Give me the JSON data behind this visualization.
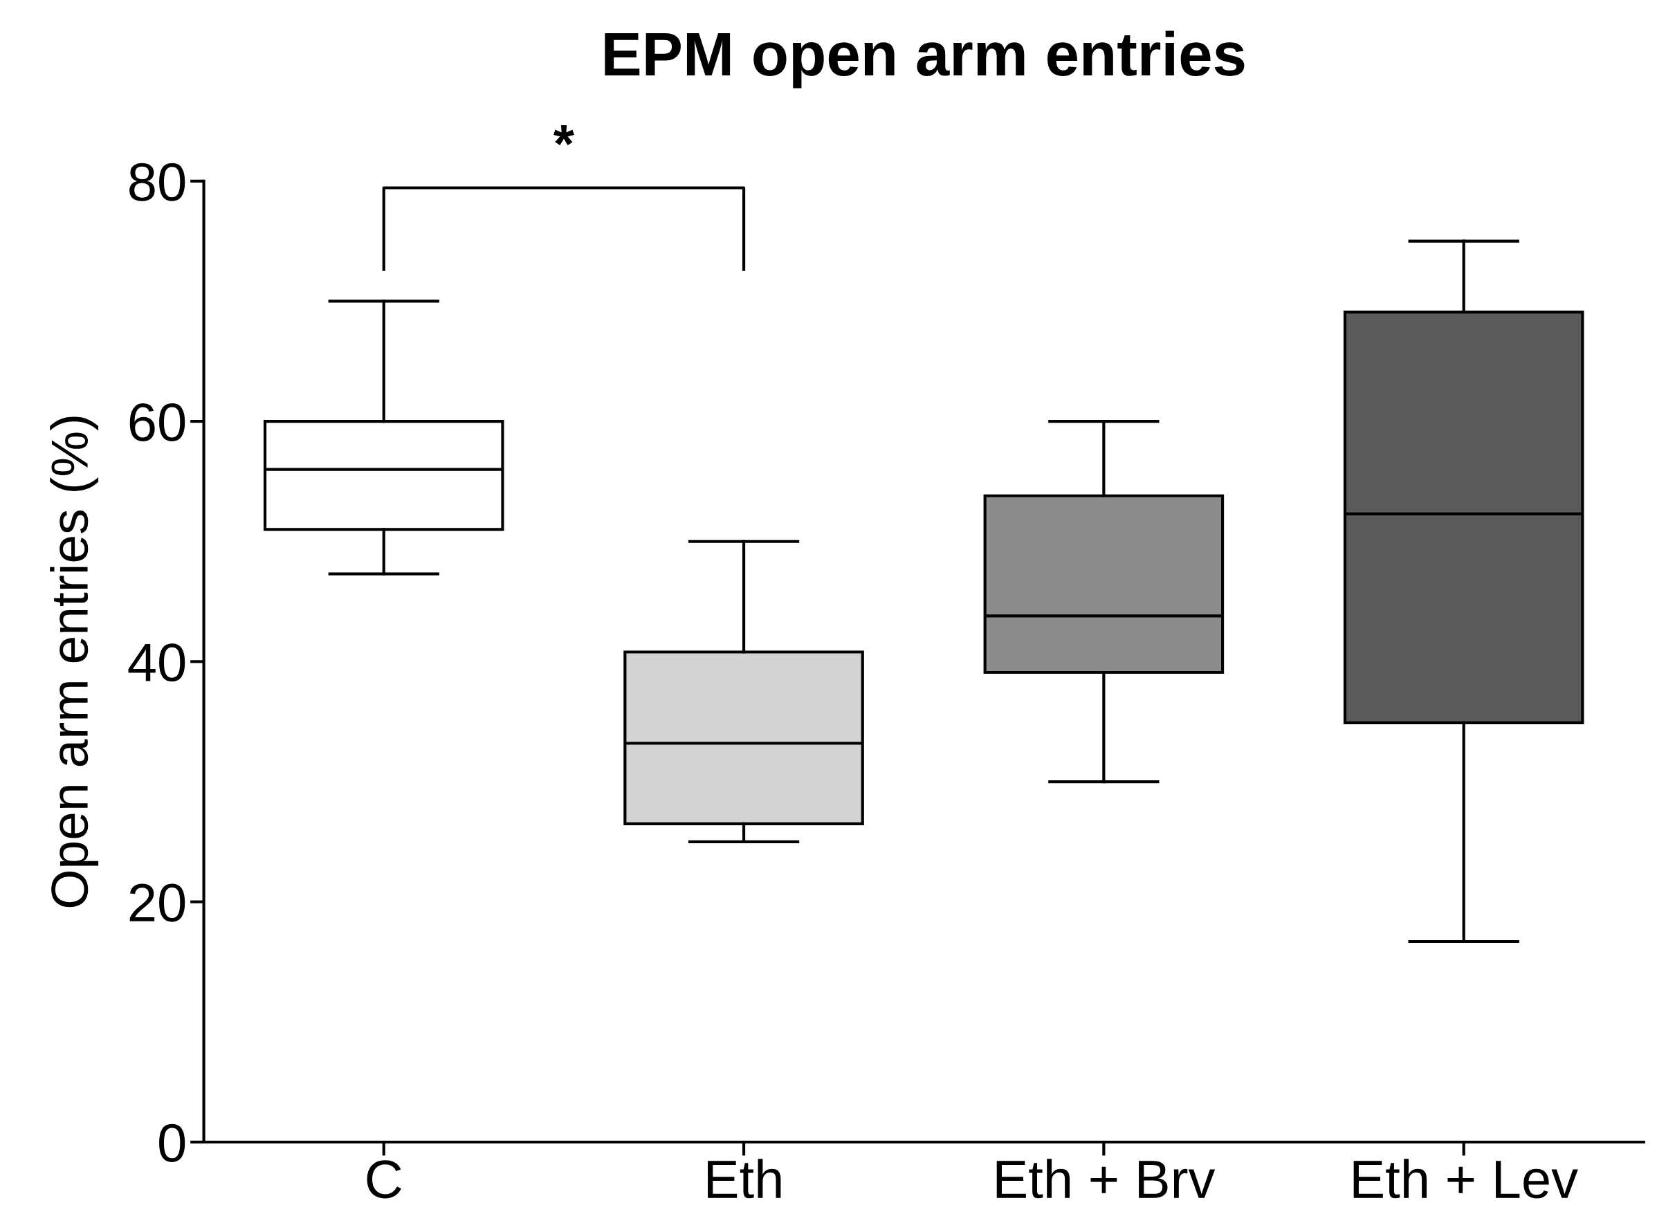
{
  "chart_data": {
    "type": "box",
    "title": "EPM open arm entries",
    "ylabel": "Open arm entries (%)",
    "categories": [
      "C",
      "Eth",
      "Eth + Brv",
      "Eth + Lev"
    ],
    "colors": [
      "#ffffff",
      "#d3d3d3",
      "#8c8c8c",
      "#5a5a5a"
    ],
    "boxes": [
      {
        "low": 47.3,
        "q1": 51,
        "median": 56,
        "q3": 60,
        "high": 70
      },
      {
        "low": 25,
        "q1": 26.5,
        "median": 33.2,
        "q3": 40.8,
        "high": 50
      },
      {
        "low": 30,
        "q1": 39.1,
        "median": 43.8,
        "q3": 53.8,
        "high": 60
      },
      {
        "low": 16.7,
        "q1": 34.9,
        "median": 52.3,
        "q3": 69.1,
        "high": 75
      }
    ],
    "ylim": [
      0,
      80
    ],
    "yticks": [
      0,
      20,
      40,
      60,
      80
    ],
    "grid": false,
    "annotations": [
      "*"
    ]
  }
}
